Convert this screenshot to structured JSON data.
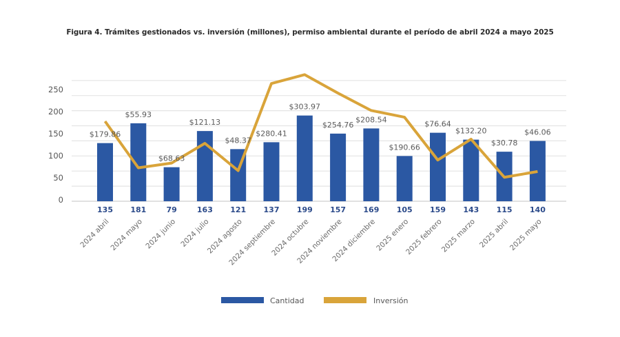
{
  "chart_data": {
    "type": "bar",
    "title": "Figura 4. Trámites gestionados vs. inversión (millones), permiso ambiental durante el período de abril 2024 a mayo 2025",
    "xlabel": "",
    "ylabel": "",
    "ylim": [
      0,
      250
    ],
    "yticks": [
      "0",
      "50",
      "100",
      "150",
      "200",
      "250"
    ],
    "grid": true,
    "legend_position": "bottom-center",
    "categories": [
      "2024 abril",
      "2024 mayo",
      "2024 junio",
      "2024 julio",
      "2024 agosto",
      "2024 septiembre",
      "2024 octubre",
      "2024 noviembre",
      "2024 diciembre",
      "2025 enero",
      "2025 febrero",
      "2025 marzo",
      "2025 abril",
      "2025 mayo"
    ],
    "series": [
      {
        "name": "Cantidad",
        "type": "bar",
        "color": "#2b58a3",
        "values": [
          135,
          181,
          79,
          163,
          121,
          137,
          199,
          157,
          169,
          105,
          159,
          143,
          115,
          140
        ],
        "labels": [
          "135",
          "181",
          "79",
          "163",
          "121",
          "137",
          "199",
          "157",
          "169",
          "105",
          "159",
          "143",
          "115",
          "140"
        ]
      },
      {
        "name": "Inversión",
        "type": "line",
        "color": "#d9a43a",
        "values": [
          179.86,
          55.93,
          68.63,
          121.13,
          48.37,
          280.41,
          303.97,
          254.76,
          208.54,
          190.66,
          76.64,
          132.2,
          30.78,
          46.06
        ],
        "labels": [
          "$179.86",
          "$55.93",
          "$68.63",
          "$121.13",
          "$48.37",
          "$280.41",
          "$303.97",
          "$254.76",
          "$208.54",
          "$190.66",
          "$76.64",
          "$132.20",
          "$30.78",
          "$46.06"
        ]
      }
    ]
  },
  "legend": {
    "items": [
      {
        "label": "Cantidad",
        "color": "#2b58a3"
      },
      {
        "label": "Inversión",
        "color": "#d9a43a"
      }
    ]
  }
}
